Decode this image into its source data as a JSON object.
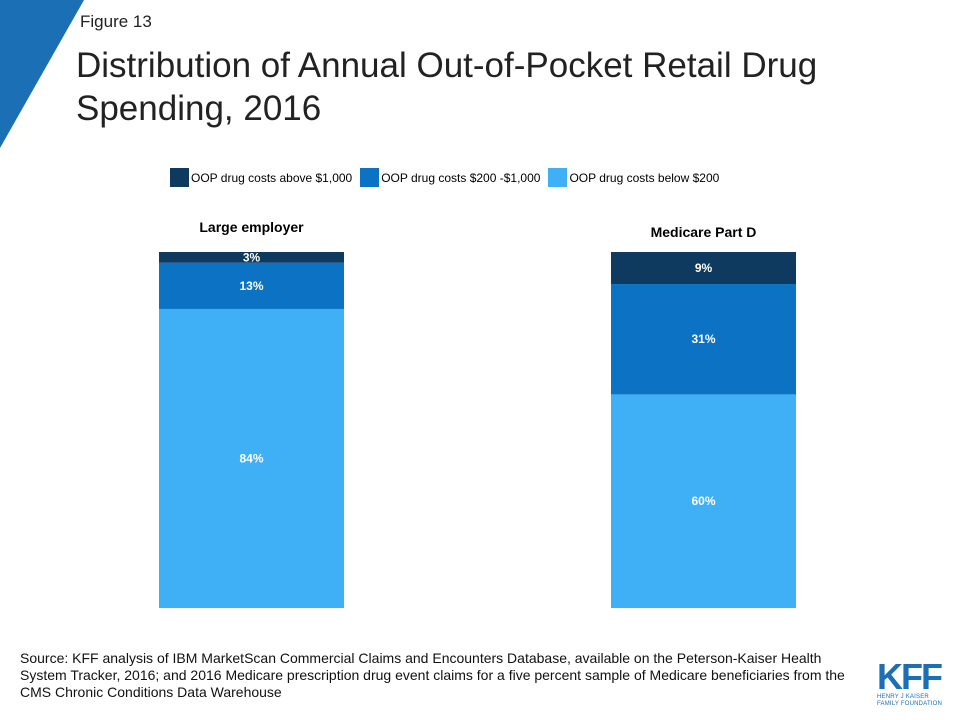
{
  "figure_label": "Figure 13",
  "title": "Distribution of Annual Out-of-Pocket Retail Drug Spending, 2016",
  "colors": {
    "above_1000": "#0e3a5f",
    "between_200_1000": "#0b72c4",
    "below_200": "#3fb0f6",
    "accent": "#1a6fb5"
  },
  "legend": [
    {
      "label": "OOP drug costs above $1,000",
      "color": "#0e3a5f"
    },
    {
      "label": "OOP drug costs $200 -$1,000",
      "color": "#0b72c4"
    },
    {
      "label": "OOP drug costs below $200",
      "color": "#3fb0f6"
    }
  ],
  "chart_data": {
    "type": "bar",
    "stacked": true,
    "orientation": "vertical",
    "categories": [
      "Large employer",
      "Medicare Part D"
    ],
    "series": [
      {
        "name": "OOP drug costs below $200",
        "values": [
          84,
          60
        ],
        "labels": [
          "84%",
          "60%"
        ]
      },
      {
        "name": "OOP drug costs $200 -$1,000",
        "values": [
          13,
          31
        ],
        "labels": [
          "13%",
          "31%"
        ]
      },
      {
        "name": "OOP drug costs above $1,000",
        "values": [
          3,
          9
        ],
        "labels": [
          "3%",
          "9%"
        ]
      }
    ],
    "ylim": [
      0,
      100
    ],
    "grid": false,
    "legend_position": "top"
  },
  "source": "Source: KFF analysis of IBM MarketScan Commercial Claims and Encounters  Database, available on the Peterson-Kaiser Health System Tracker, 2016; and 2016 Medicare prescription drug event claims for a five percent sample of Medicare beneficiaries from the CMS Chronic Conditions Data Warehouse",
  "logo": {
    "mark": "KFF",
    "sub_line1": "HENRY J KAISER",
    "sub_line2": "FAMILY FOUNDATION"
  }
}
